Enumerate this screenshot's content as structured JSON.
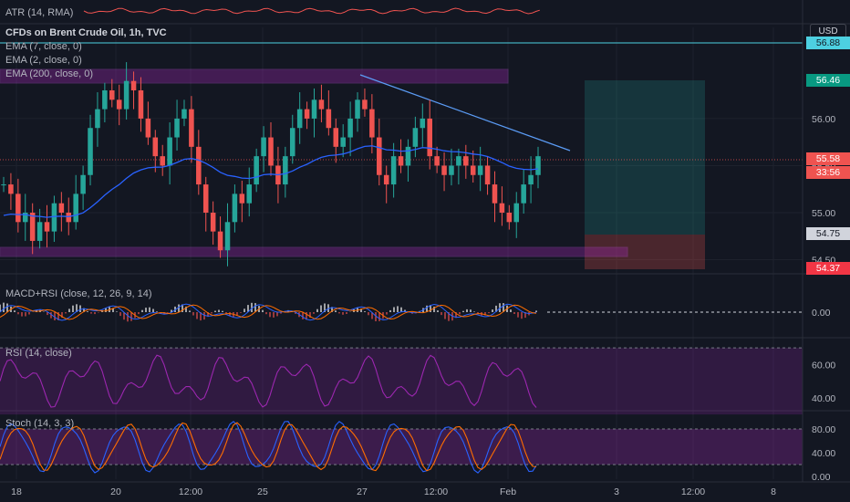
{
  "chart_data": [
    {
      "type": "candlestick",
      "title": "CFDs on Brent Crude Oil, 1h, TVC",
      "y_ticks": [
        "56.00",
        "55.50",
        "55.00",
        "54.50"
      ],
      "ylim": [
        54.35,
        56.95
      ],
      "x_ticks": [
        "18",
        "20",
        "12:00",
        "25",
        "27",
        "12:00",
        "Feb",
        "3",
        "12:00",
        "8"
      ],
      "indicators": [
        "EMA (7, close, 0)",
        "EMA (2, close, 0)",
        "EMA (200, close, 0)"
      ],
      "price_tags": {
        "resistance": "56.88",
        "target": "56.46",
        "last": "55.58",
        "countdown": "33:56",
        "stop_zone": "54.75",
        "stop": "54.37"
      },
      "currency": "USD",
      "closes_approx": [
        55.3,
        55.2,
        54.9,
        55.0,
        54.7,
        54.9,
        54.8,
        55.1,
        55.0,
        54.9,
        55.2,
        55.4,
        55.9,
        56.1,
        56.3,
        56.2,
        56.1,
        56.4,
        56.3,
        56.0,
        55.8,
        55.6,
        55.5,
        55.8,
        56.0,
        56.1,
        55.7,
        55.3,
        55.0,
        54.8,
        54.6,
        54.9,
        55.2,
        55.1,
        55.3,
        55.6,
        55.8,
        55.5,
        55.3,
        55.6,
        55.9,
        56.1,
        56.0,
        56.2,
        56.1,
        55.9,
        55.7,
        55.8,
        56.0,
        56.2,
        56.1,
        55.8,
        55.4,
        55.3,
        55.6,
        55.5,
        55.7,
        55.9,
        56.0,
        55.6,
        55.5,
        55.4,
        55.5,
        55.6,
        55.5,
        55.4,
        55.5,
        55.3,
        55.1,
        55.0,
        54.9,
        55.1,
        55.3,
        55.4,
        55.6
      ]
    },
    {
      "type": "line",
      "title": "ATR (14, RMA)"
    },
    {
      "type": "line",
      "title": "MACD+RSI (close, 12, 26, 9, 14)",
      "y_ticks": [
        "0.00"
      ]
    },
    {
      "type": "line",
      "title": "RSI (14, close)",
      "y_ticks": [
        "60.00",
        "40.00"
      ]
    },
    {
      "type": "line",
      "title": "Stoch (14, 3, 3)",
      "y_ticks": [
        "80.00",
        "40.00",
        "0.00"
      ]
    }
  ],
  "colors": {
    "bg": "#131722",
    "up": "#26a69a",
    "down": "#ef5350",
    "ema200": "#2962ff",
    "ema7": "#ffffff",
    "zone": "#9c27b0",
    "rsi": "#9c27b0",
    "stoch_k": "#2962ff",
    "stoch_d": "#ff6d00"
  }
}
